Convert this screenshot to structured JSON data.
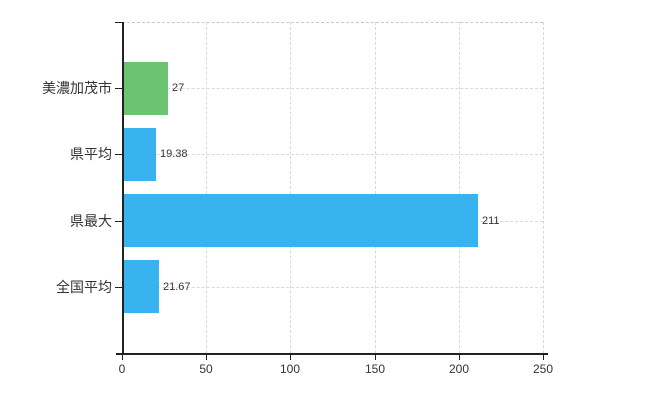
{
  "chart_data": {
    "type": "bar",
    "orientation": "horizontal",
    "title": "",
    "xlabel": "",
    "ylabel": "",
    "categories": [
      "美濃加茂市",
      "県平均",
      "県最大",
      "全国平均"
    ],
    "values": [
      27,
      19.38,
      211,
      21.67
    ],
    "value_labels": [
      "27",
      "19.38",
      "211",
      "21.67"
    ],
    "bar_colors": [
      "#6cc472",
      "#38b3ef",
      "#38b3ef",
      "#38b3ef"
    ],
    "xlim": [
      0,
      250
    ],
    "x_ticks": [
      0,
      50,
      100,
      150,
      200,
      250
    ],
    "x_tick_labels": [
      "0",
      "50",
      "100",
      "150",
      "200",
      "250"
    ],
    "grid": true,
    "legend": false
  },
  "colors": {
    "background": "#ffffff",
    "bar_green": "#6cc472",
    "bar_blue": "#38b3ef",
    "grid": "#d9d9d9",
    "axis": "#222222",
    "text": "#333333"
  }
}
